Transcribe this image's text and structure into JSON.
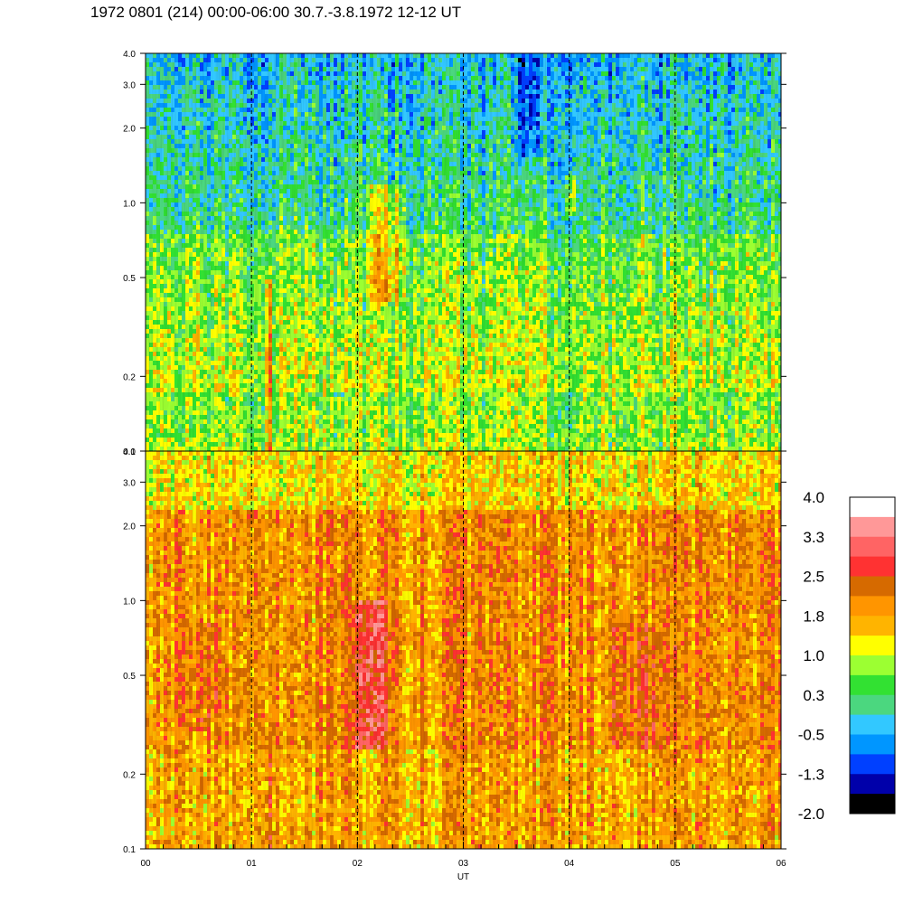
{
  "title": "1972 0801 (214) 00:00-06:00 30.7.-3.8.1972  12-12 UT",
  "chart_data": {
    "type": "heatmap",
    "panels": [
      {
        "id": "upper",
        "ylim": [
          0.1,
          4.0
        ],
        "yscale": "log",
        "yticks": [
          "0.1",
          "0.2",
          "0.5",
          "1.0",
          "2.0",
          "3.0",
          "4.0"
        ],
        "base_level": 0.4,
        "features": [
          {
            "x_center": 1.15,
            "x_width": 0.06,
            "y_low": 0.1,
            "y_high": 0.5,
            "level": 1.7
          },
          {
            "x_center": 2.25,
            "x_width": 0.35,
            "y_low": 0.4,
            "y_high": 1.2,
            "level": 1.4
          },
          {
            "x_center": 4.0,
            "x_width": 0.1,
            "y_low": 0.9,
            "y_high": 1.3,
            "level": 1.5
          },
          {
            "x_center": 3.6,
            "x_width": 0.3,
            "y_low": 1.5,
            "y_high": 4.0,
            "level": -0.5
          }
        ]
      },
      {
        "id": "lower",
        "ylim": [
          0.1,
          4.0
        ],
        "yscale": "log",
        "yticks": [
          "0.1",
          "0.2",
          "0.5",
          "1.0",
          "2.0",
          "3.0",
          "4.0"
        ],
        "base_level": 1.9,
        "features": [
          {
            "x_center": 2.1,
            "x_width": 0.3,
            "y_low": 0.25,
            "y_high": 1.0,
            "level": 3.1
          },
          {
            "x_center": 1.15,
            "x_width": 0.05,
            "y_low": 0.1,
            "y_high": 0.3,
            "level": 2.8
          },
          {
            "x_center": 4.6,
            "x_width": 0.5,
            "y_low": 0.25,
            "y_high": 0.8,
            "level": 2.3
          },
          {
            "x_center": 0.5,
            "x_width": 0.35,
            "y_low": 0.3,
            "y_high": 0.8,
            "level": 2.2
          }
        ]
      }
    ],
    "x_ticks": [
      "00",
      "01",
      "02",
      "03",
      "04",
      "05",
      "06"
    ],
    "xlabel": "UT",
    "xlim": [
      0,
      6
    ],
    "hour_dividers": [
      1,
      2,
      3,
      4,
      5
    ],
    "colorbar": {
      "labels": [
        "4.0",
        "3.3",
        "2.5",
        "1.8",
        "1.0",
        "0.3",
        "-0.5",
        "-1.3",
        "-2.0"
      ],
      "colors": [
        "#ffffff",
        "#ff9898",
        "#ff6464",
        "#ff3232",
        "#d66a00",
        "#ff9500",
        "#ffb400",
        "#ffff00",
        "#9cff32",
        "#32e132",
        "#4bd77f",
        "#32c8ff",
        "#0096ff",
        "#0040ff",
        "#0000aa",
        "#000000"
      ],
      "range": [
        -2.0,
        4.0
      ]
    }
  }
}
